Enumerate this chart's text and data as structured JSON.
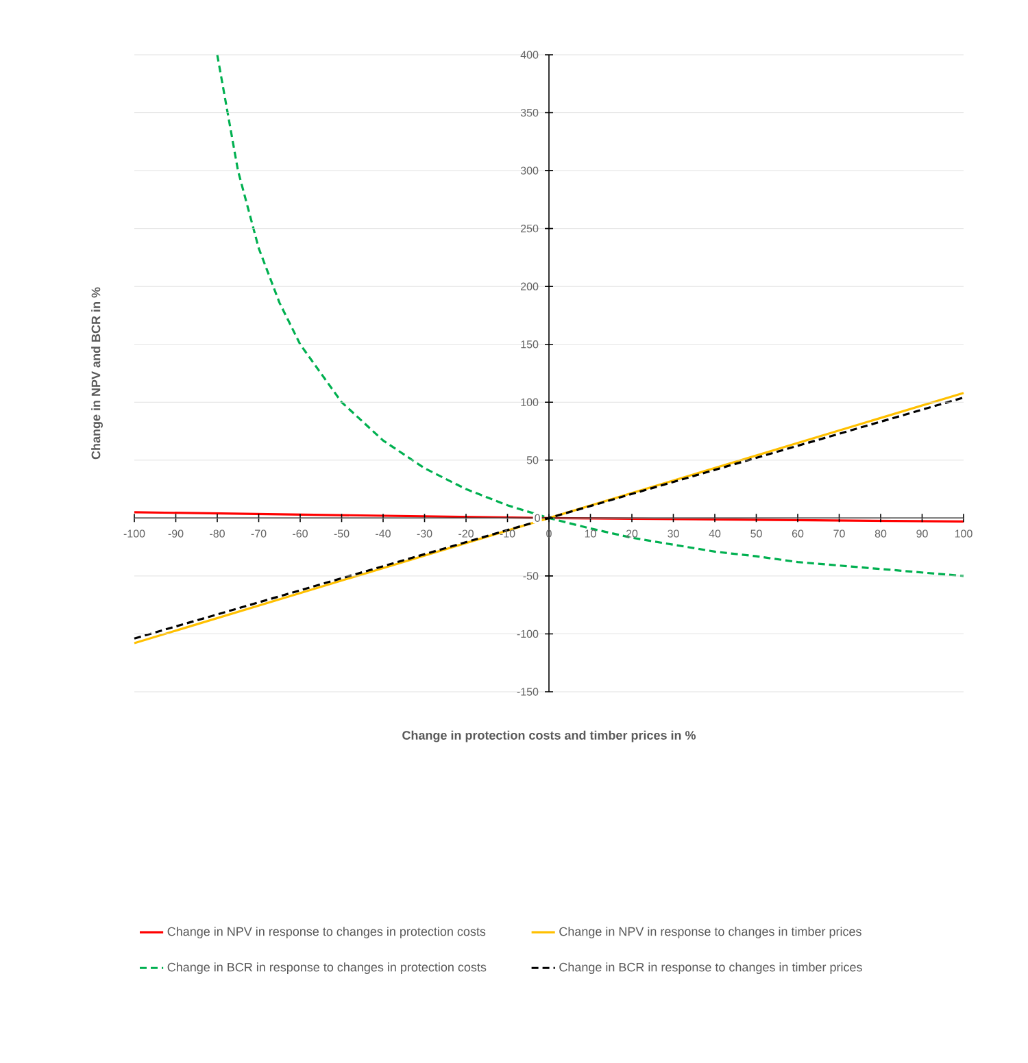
{
  "chart_data": {
    "type": "line",
    "xlabel": "Change in protection costs and timber prices in %",
    "ylabel": "Change in NPV and BCR in %",
    "xlim": [
      -100,
      100
    ],
    "ylim": [
      -150,
      400
    ],
    "xticks": [
      -100,
      -90,
      -80,
      -70,
      -60,
      -50,
      -40,
      -30,
      -20,
      -10,
      0,
      10,
      20,
      30,
      40,
      50,
      60,
      70,
      80,
      90,
      100
    ],
    "yticks": [
      -150,
      -100,
      -50,
      0,
      50,
      100,
      150,
      200,
      250,
      300,
      350,
      400
    ],
    "grid": "y",
    "legend": "bottom",
    "marker": "none",
    "series": [
      {
        "name": "Change in NPV in response to changes in protection costs",
        "color": "#ff0000",
        "line_style": "solid",
        "x": [
          -100,
          0,
          100
        ],
        "values": [
          5,
          0,
          -3
        ]
      },
      {
        "name": "Change in NPV in response to changes in timber prices",
        "color": "#ffc000",
        "line_style": "solid",
        "x": [
          -100,
          0,
          100
        ],
        "values": [
          -108,
          0,
          108
        ]
      },
      {
        "name": "Change in BCR in response to changes in protection costs",
        "color": "#00b050",
        "line_style": "dashed",
        "x": [
          -80,
          -75,
          -70,
          -65,
          -60,
          -50,
          -40,
          -30,
          -20,
          -10,
          0,
          10,
          20,
          30,
          40,
          50,
          60,
          70,
          80,
          90,
          100
        ],
        "values": [
          400,
          300,
          233,
          186,
          150,
          100,
          67,
          43,
          25,
          11,
          0,
          -9,
          -17,
          -23,
          -29,
          -33,
          -38,
          -41,
          -44,
          -47,
          -50
        ]
      },
      {
        "name": "Change in BCR in response to changes in timber prices",
        "color": "#000000",
        "line_style": "dashed",
        "x": [
          -100,
          0,
          100
        ],
        "values": [
          -104,
          0,
          104
        ]
      }
    ]
  }
}
